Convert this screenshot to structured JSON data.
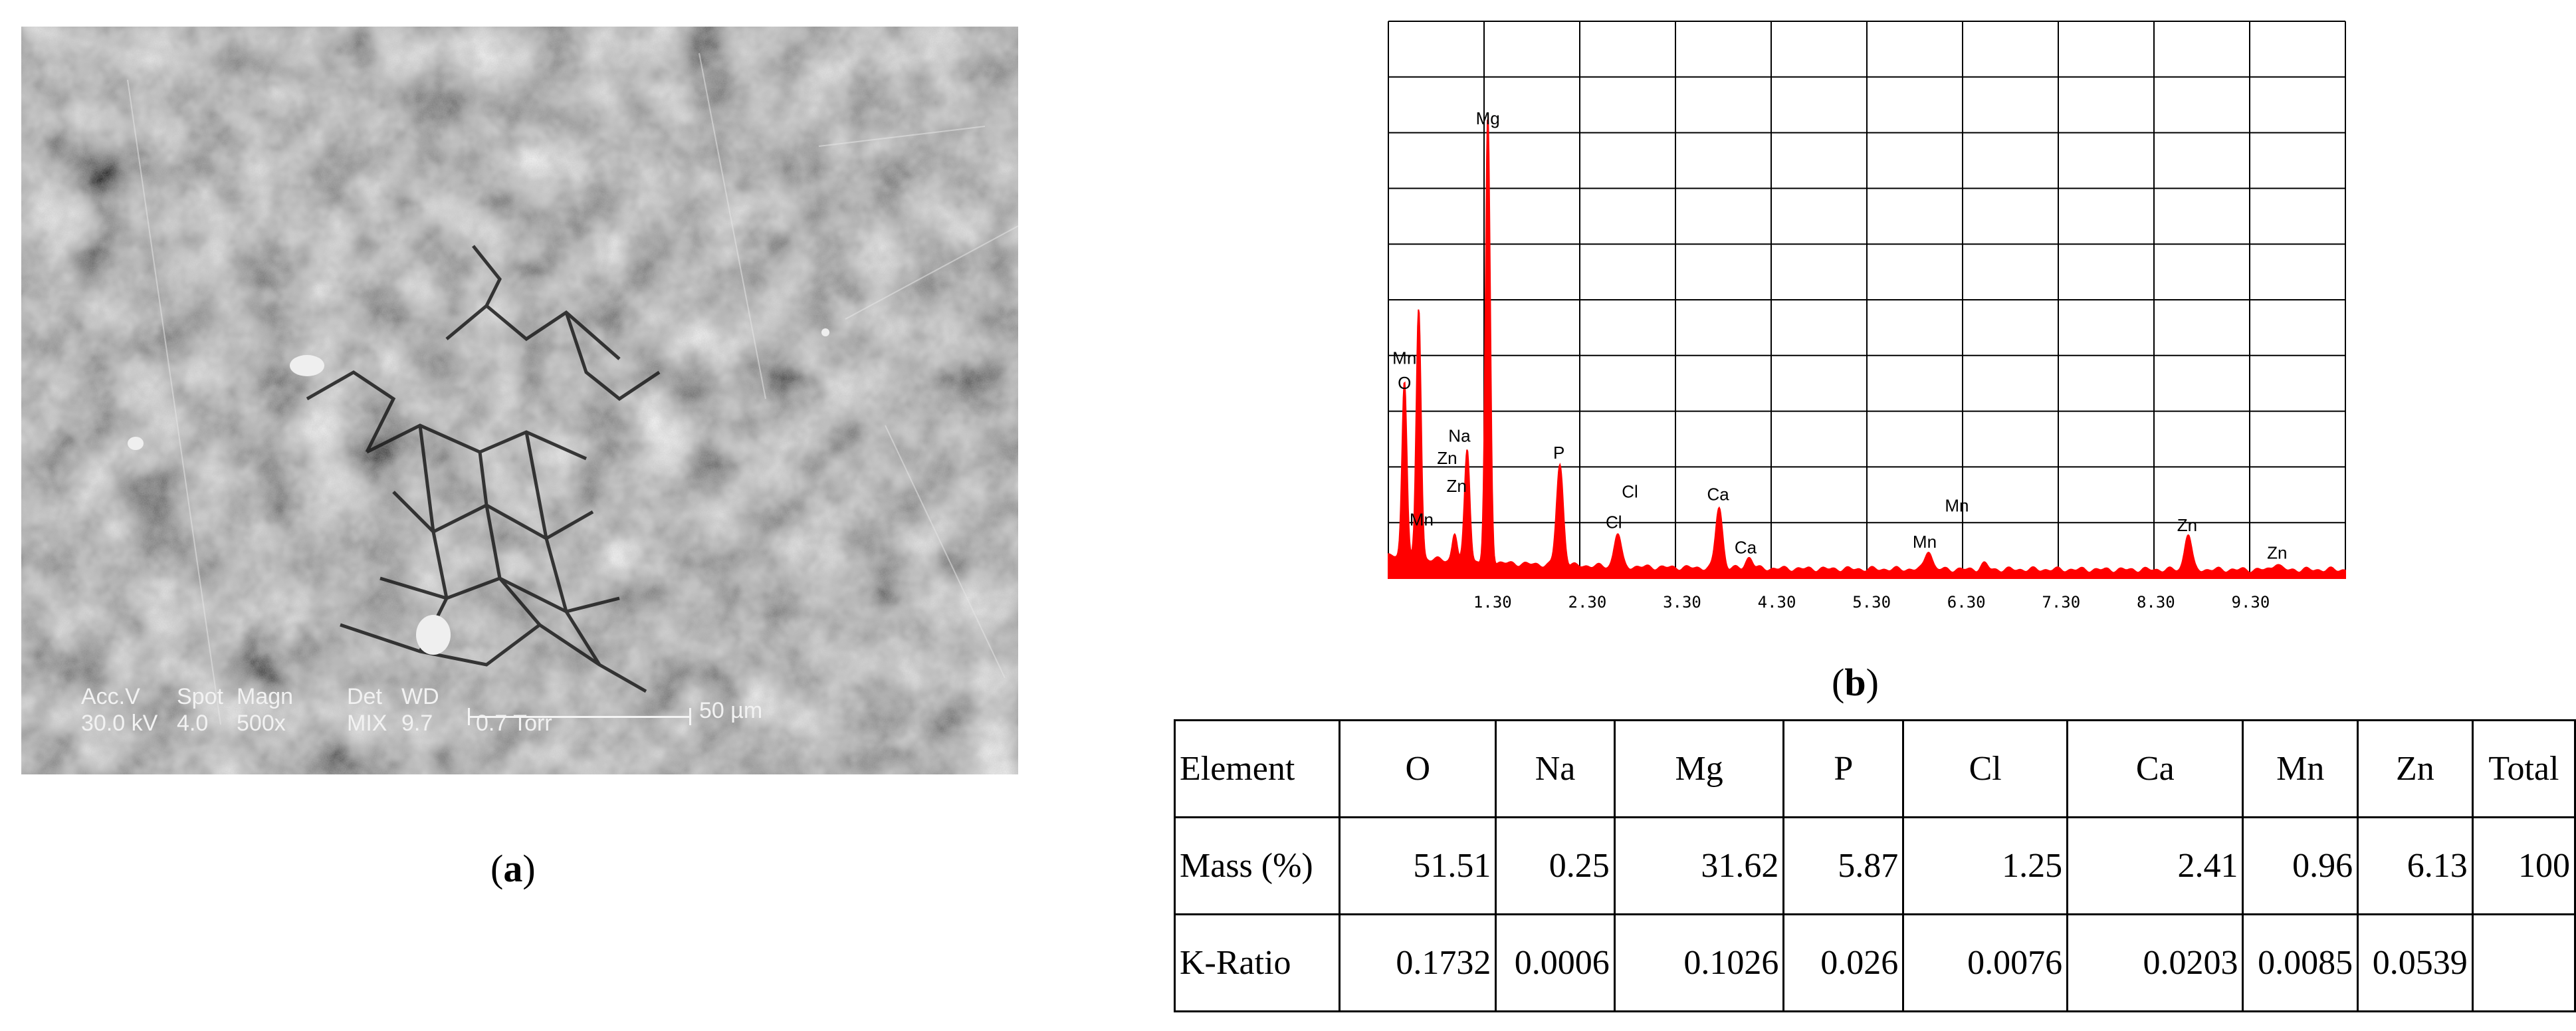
{
  "panel_a": {
    "caption_letter": "a",
    "acc_label": "Acc.V",
    "acc_value": "30.0 kV",
    "spot_label": "Spot",
    "spot_value": "4.0",
    "magn_label": "Magn",
    "magn_value": "500x",
    "det_label": "Det",
    "det_value": "MIX",
    "wd_label": "WD",
    "wd_value": "9.7",
    "pressure": "0.7 Torr",
    "scale_label": "50 µm"
  },
  "panel_b": {
    "caption_letter": "b"
  },
  "chart_data": {
    "type": "line",
    "title": "",
    "xlabel": "",
    "ylabel": "",
    "xlim": [
      0.2,
      10.3
    ],
    "ylim": [
      0,
      10
    ],
    "grid": true,
    "color": "#ff0000",
    "x_ticks": [
      "1.30",
      "2.30",
      "3.30",
      "4.30",
      "5.30",
      "6.30",
      "7.30",
      "8.30",
      "9.30"
    ],
    "x_tick_values": [
      1.3,
      2.3,
      3.3,
      4.3,
      5.3,
      6.3,
      7.3,
      8.3,
      9.3
    ],
    "peaks": [
      {
        "x": 0.37,
        "y": 3.2
      },
      {
        "x": 0.52,
        "y": 4.5
      },
      {
        "x": 0.9,
        "y": 0.5
      },
      {
        "x": 1.02,
        "y": 0.9
      },
      {
        "x": 1.04,
        "y": 1.3
      },
      {
        "x": 1.25,
        "y": 8.0
      },
      {
        "x": 2.01,
        "y": 1.8
      },
      {
        "x": 2.62,
        "y": 0.6
      },
      {
        "x": 3.69,
        "y": 1.1
      },
      {
        "x": 4.01,
        "y": 0.2
      },
      {
        "x": 5.9,
        "y": 0.35
      },
      {
        "x": 6.49,
        "y": 0.1
      },
      {
        "x": 8.64,
        "y": 0.65
      },
      {
        "x": 9.57,
        "y": 0.12
      }
    ],
    "annotations": [
      {
        "text": "Mg",
        "x": 1.25,
        "y": 8.15
      },
      {
        "text": "Mn",
        "x": 0.37,
        "y": 3.85
      },
      {
        "text": "O",
        "x": 0.37,
        "y": 3.4
      },
      {
        "text": "Na",
        "x": 0.95,
        "y": 2.45
      },
      {
        "text": "Zn",
        "x": 0.82,
        "y": 2.05
      },
      {
        "text": "Zn",
        "x": 0.92,
        "y": 1.55
      },
      {
        "text": "Mn",
        "x": 0.55,
        "y": 0.95
      },
      {
        "text": "P",
        "x": 2.0,
        "y": 2.15
      },
      {
        "text": "Cl",
        "x": 2.75,
        "y": 1.45
      },
      {
        "text": "Cl",
        "x": 2.58,
        "y": 0.9
      },
      {
        "text": "Ca",
        "x": 3.68,
        "y": 1.4
      },
      {
        "text": "Ca",
        "x": 3.97,
        "y": 0.45
      },
      {
        "text": "Mn",
        "x": 6.2,
        "y": 1.2
      },
      {
        "text": "Mn",
        "x": 5.86,
        "y": 0.55
      },
      {
        "text": "Zn",
        "x": 8.63,
        "y": 0.85
      },
      {
        "text": "Zn",
        "x": 9.58,
        "y": 0.35
      }
    ]
  },
  "table": {
    "header": [
      "Element",
      "O",
      "Na",
      "Mg",
      "P",
      "Cl",
      "Ca",
      "Mn",
      "Zn",
      "Total"
    ],
    "rows": [
      [
        "Mass (%)",
        "51.51",
        "0.25",
        "31.62",
        "5.87",
        "1.25",
        "2.41",
        "0.96",
        "6.13",
        "100"
      ],
      [
        "K-Ratio",
        "0.1732",
        "0.0006",
        "0.1026",
        "0.026",
        "0.0076",
        "0.0203",
        "0.0085",
        "0.0539",
        ""
      ]
    ]
  }
}
